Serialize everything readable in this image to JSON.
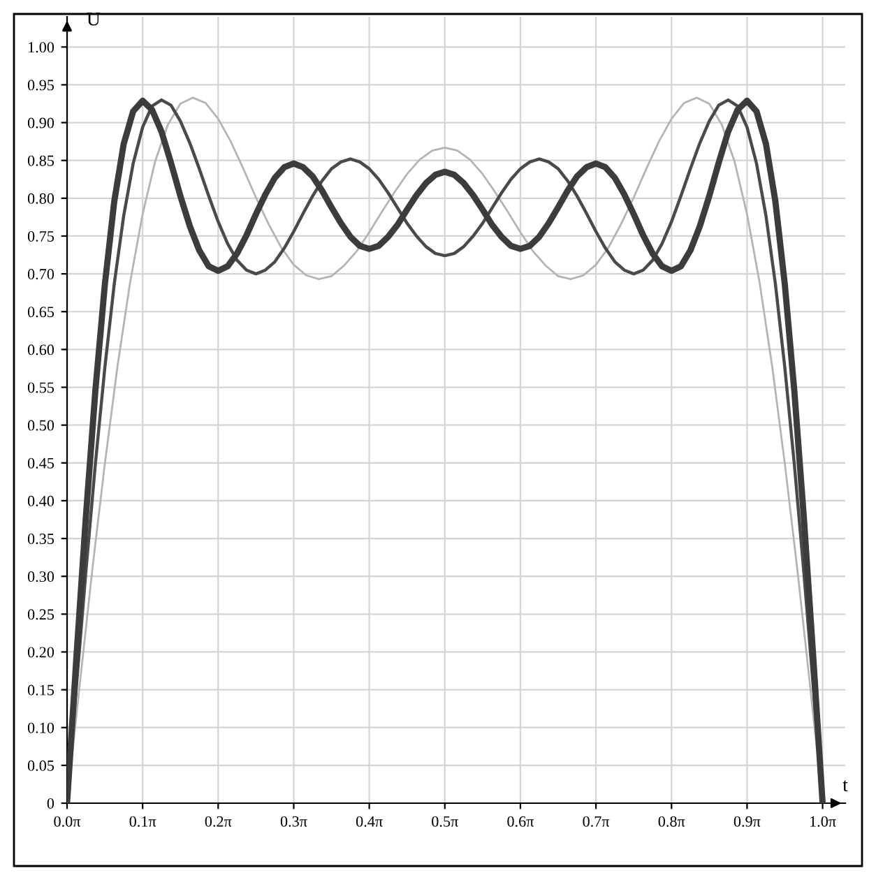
{
  "chart_data": {
    "type": "line",
    "xlabel": "t",
    "ylabel": "U",
    "grid": true,
    "line_style": "solid",
    "xlim": [
      0,
      3.2358
    ],
    "ylim": [
      0,
      1.04
    ],
    "xticks": [
      {
        "value": 0,
        "label": "0.0π"
      },
      {
        "value": 0.3142,
        "label": "0.1π"
      },
      {
        "value": 0.6283,
        "label": "0.2π"
      },
      {
        "value": 0.9425,
        "label": "0.3π"
      },
      {
        "value": 1.2566,
        "label": "0.4π"
      },
      {
        "value": 1.5708,
        "label": "0.5π"
      },
      {
        "value": 1.885,
        "label": "0.6π"
      },
      {
        "value": 2.1991,
        "label": "0.7π"
      },
      {
        "value": 2.5133,
        "label": "0.8π"
      },
      {
        "value": 2.8274,
        "label": "0.9π"
      },
      {
        "value": 3.1416,
        "label": "1.0π"
      }
    ],
    "yticks": [
      0,
      {
        "value": 0.05,
        "label": "0.05"
      },
      {
        "value": 0.1,
        "label": "0.10"
      },
      {
        "value": 0.15,
        "label": "0.15"
      },
      {
        "value": 0.2,
        "label": "0.20"
      },
      {
        "value": 0.25,
        "label": "0.25"
      },
      {
        "value": 0.3,
        "label": "0.30"
      },
      {
        "value": 0.35,
        "label": "0.35"
      },
      {
        "value": 0.4,
        "label": "0.40"
      },
      {
        "value": 0.45,
        "label": "0.45"
      },
      {
        "value": 0.5,
        "label": "0.50"
      },
      {
        "value": 0.55,
        "label": "0.55"
      },
      {
        "value": 0.6,
        "label": "0.60"
      },
      {
        "value": 0.65,
        "label": "0.65"
      },
      {
        "value": 0.7,
        "label": "0.70"
      },
      {
        "value": 0.75,
        "label": "0.75"
      },
      {
        "value": 0.8,
        "label": "0.80"
      },
      {
        "value": 0.85,
        "label": "0.85"
      },
      {
        "value": 0.9,
        "label": "0.90"
      },
      {
        "value": 0.95,
        "label": "0.95"
      },
      {
        "value": 1,
        "label": "1.00"
      }
    ],
    "x": [
      0,
      0.0393,
      0.0785,
      0.1178,
      0.1571,
      0.1963,
      0.2356,
      0.2749,
      0.3142,
      0.3534,
      0.3927,
      0.432,
      0.4712,
      0.5105,
      0.5498,
      0.589,
      0.6283,
      0.6676,
      0.7069,
      0.7461,
      0.7854,
      0.8247,
      0.8639,
      0.9032,
      0.9425,
      0.9817,
      1.021,
      1.0603,
      1.0996,
      1.1388,
      1.1781,
      1.2174,
      1.2566,
      1.2959,
      1.3352,
      1.3744,
      1.4137,
      1.453,
      1.4923,
      1.5315,
      1.5708,
      1.6101,
      1.6493,
      1.6886,
      1.7279,
      1.7671,
      1.8064,
      1.8457,
      1.885,
      1.9242,
      1.9635,
      2.0028,
      2.042,
      2.0813,
      2.1206,
      2.1598,
      2.1991,
      2.2384,
      2.2777,
      2.3169,
      2.3562,
      2.3955,
      2.4347,
      2.474,
      2.5133,
      2.5525,
      2.5918,
      2.6311,
      2.6704,
      2.7096,
      2.7489,
      2.7882,
      2.8274,
      2.8667,
      2.906,
      2.9452,
      2.9845,
      3.0238,
      3.0631,
      3.1023,
      3.1416
    ],
    "series": [
      {
        "color": "#b4b4b4",
        "x": [
          0,
          0.0524,
          0.1047,
          0.1571,
          0.2094,
          0.2618,
          0.3142,
          0.3665,
          0.4189,
          0.4712,
          0.5236,
          0.576,
          0.6283,
          0.6807,
          0.733,
          0.7854,
          0.8378,
          0.8901,
          0.9425,
          0.9948,
          1.0472,
          1.0996,
          1.1519,
          1.2043,
          1.2566,
          1.309,
          1.3614,
          1.4137,
          1.4661,
          1.5184,
          1.5708,
          1.6232,
          1.6755,
          1.7279,
          1.7802,
          1.8326,
          1.885,
          1.9373,
          1.9897,
          2.042,
          2.0944,
          2.1468,
          2.1991,
          2.2515,
          2.3038,
          2.3562,
          2.4086,
          2.4609,
          2.5133,
          2.5656,
          2.618,
          2.6704,
          2.7227,
          2.7751,
          2.8274,
          2.8798,
          2.9322,
          2.9845,
          3.0369,
          3.0892,
          3.1416
        ],
        "values": [
          0.0,
          0.156,
          0.308,
          0.449,
          0.577,
          0.688,
          0.779,
          0.849,
          0.897,
          0.925,
          0.933,
          0.926,
          0.905,
          0.875,
          0.839,
          0.801,
          0.766,
          0.735,
          0.712,
          0.698,
          0.693,
          0.697,
          0.711,
          0.73,
          0.755,
          0.782,
          0.808,
          0.832,
          0.851,
          0.863,
          0.867,
          0.863,
          0.851,
          0.832,
          0.808,
          0.782,
          0.755,
          0.73,
          0.711,
          0.697,
          0.693,
          0.698,
          0.712,
          0.735,
          0.766,
          0.801,
          0.839,
          0.875,
          0.905,
          0.926,
          0.933,
          0.925,
          0.897,
          0.849,
          0.779,
          0.688,
          0.577,
          0.449,
          0.308,
          0.156,
          0.0
        ]
      },
      {
        "color": "#4a4a4a",
        "values": [
          0.0,
          0.156,
          0.307,
          0.449,
          0.576,
          0.687,
          0.777,
          0.846,
          0.894,
          0.922,
          0.93,
          0.923,
          0.902,
          0.873,
          0.839,
          0.803,
          0.769,
          0.74,
          0.718,
          0.705,
          0.7,
          0.705,
          0.716,
          0.734,
          0.756,
          0.78,
          0.803,
          0.823,
          0.839,
          0.848,
          0.852,
          0.848,
          0.839,
          0.825,
          0.807,
          0.787,
          0.767,
          0.75,
          0.736,
          0.727,
          0.724,
          0.727,
          0.736,
          0.75,
          0.767,
          0.787,
          0.807,
          0.825,
          0.839,
          0.848,
          0.852,
          0.848,
          0.839,
          0.823,
          0.803,
          0.78,
          0.756,
          0.734,
          0.716,
          0.705,
          0.7,
          0.705,
          0.718,
          0.74,
          0.769,
          0.803,
          0.839,
          0.873,
          0.902,
          0.923,
          0.93,
          0.922,
          0.894,
          0.846,
          0.777,
          0.687,
          0.576,
          0.449,
          0.307,
          0.156,
          0.0
        ]
      },
      {
        "color": "#3c3c3c",
        "values": [
          0.0,
          0.195,
          0.38,
          0.546,
          0.686,
          0.796,
          0.872,
          0.915,
          0.929,
          0.917,
          0.888,
          0.847,
          0.803,
          0.763,
          0.731,
          0.71,
          0.704,
          0.71,
          0.727,
          0.751,
          0.779,
          0.805,
          0.827,
          0.841,
          0.846,
          0.841,
          0.829,
          0.81,
          0.788,
          0.767,
          0.749,
          0.737,
          0.733,
          0.737,
          0.749,
          0.765,
          0.785,
          0.804,
          0.82,
          0.831,
          0.835,
          0.831,
          0.82,
          0.804,
          0.785,
          0.765,
          0.749,
          0.737,
          0.733,
          0.737,
          0.749,
          0.767,
          0.788,
          0.81,
          0.829,
          0.841,
          0.846,
          0.841,
          0.827,
          0.805,
          0.779,
          0.751,
          0.727,
          0.71,
          0.704,
          0.71,
          0.731,
          0.763,
          0.803,
          0.847,
          0.888,
          0.917,
          0.929,
          0.915,
          0.872,
          0.796,
          0.686,
          0.546,
          0.38,
          0.195,
          0.0
        ]
      }
    ]
  }
}
